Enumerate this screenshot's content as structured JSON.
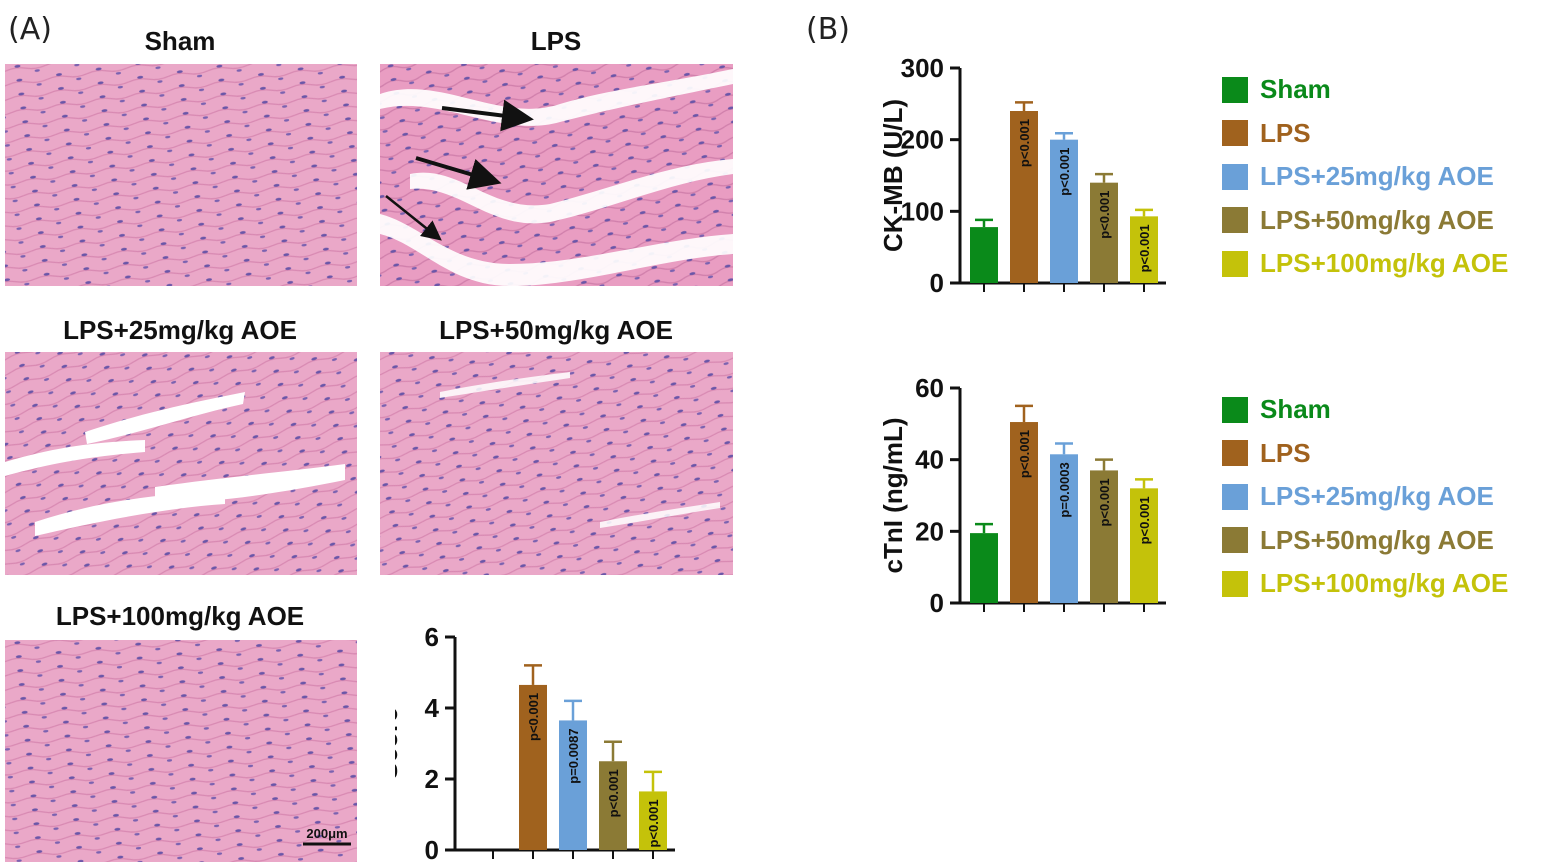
{
  "panels": {
    "a_label": "(A)",
    "b_label": "(B)"
  },
  "images": [
    {
      "title": "Sham"
    },
    {
      "title": "LPS"
    },
    {
      "title": "LPS+25mg/kg AOE"
    },
    {
      "title": "LPS+50mg/kg AOE"
    },
    {
      "title": "LPS+100mg/kg AOE"
    }
  ],
  "scale_bar": "200μm",
  "colors": {
    "Sham": "#0a8a1a",
    "LPS": "#a0621e",
    "LPS+25mg/kg AOE": "#6aa0d8",
    "LPS+50mg/kg AOE": "#8b7a35",
    "LPS+100mg/kg AOE": "#c4c20a",
    "tissue": "#e9a6c6"
  },
  "legend_top": [
    "Sham",
    "LPS",
    "LPS+25mg/kg AOE",
    "LPS+50mg/kg AOE",
    "LPS+100mg/kg AOE"
  ],
  "legend_bottom": [
    "Sham",
    "LPS",
    "LPS+25mg/kg AOE",
    "LPS+50mg/kg AOE",
    "LPS+100mg/kg AOE"
  ],
  "chart_data": [
    {
      "id": "ckmb",
      "type": "bar",
      "categories": [
        "Sham",
        "LPS",
        "LPS+25mg/kg AOE",
        "LPS+50mg/kg AOE",
        "LPS+100mg/kg AOE"
      ],
      "values": [
        78,
        240,
        200,
        140,
        93
      ],
      "errors": [
        10,
        12,
        9,
        12,
        9
      ],
      "annotations": [
        "",
        "p<0.001",
        "p<0.001",
        "p<0.001",
        "p<0.001"
      ],
      "ylabel": "CK-MB (U/L)",
      "ylim": [
        0,
        300
      ],
      "yticks": [
        0,
        100,
        200,
        300
      ]
    },
    {
      "id": "ctni",
      "type": "bar",
      "categories": [
        "Sham",
        "LPS",
        "LPS+25mg/kg AOE",
        "LPS+50mg/kg AOE",
        "LPS+100mg/kg AOE"
      ],
      "values": [
        19.5,
        50.5,
        41.5,
        37,
        32
      ],
      "errors": [
        2.5,
        4.5,
        3,
        3,
        2.5
      ],
      "annotations": [
        "",
        "p<0.001",
        "p=0.0003",
        "p<0.001",
        "p<0.001"
      ],
      "ylabel": "cTnI (ng/mL)",
      "ylim": [
        0,
        60
      ],
      "yticks": [
        0,
        20,
        40,
        60
      ]
    },
    {
      "id": "score",
      "type": "bar",
      "categories": [
        "Sham",
        "LPS",
        "LPS+25mg/kg AOE",
        "LPS+50mg/kg AOE",
        "LPS+100mg/kg AOE"
      ],
      "values": [
        0,
        4.65,
        3.65,
        2.5,
        1.65
      ],
      "errors": [
        0,
        0.55,
        0.55,
        0.55,
        0.55
      ],
      "annotations": [
        "",
        "p<0.001",
        "p=0.0087",
        "p<0.001",
        "p<0.001"
      ],
      "ylabel": "Score",
      "ylim": [
        0,
        6
      ],
      "yticks": [
        0,
        2,
        4,
        6
      ]
    }
  ]
}
